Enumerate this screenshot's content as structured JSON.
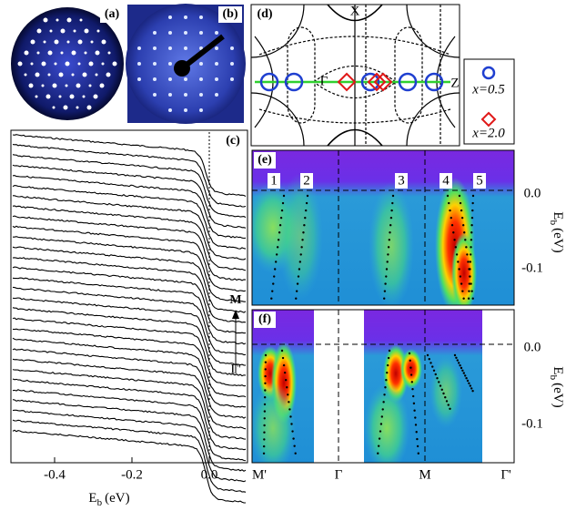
{
  "panels": {
    "a": {
      "label": "(a)"
    },
    "b": {
      "label": "(b)"
    },
    "c": {
      "label": "(c)",
      "xticks": [
        "-0.4",
        "-0.2",
        "0.0"
      ],
      "xlabel": {
        "main": "E",
        "sub": "b",
        "unit": "(eV)"
      },
      "arrow_top": "M",
      "arrow_bottom": "Γ'"
    },
    "d": {
      "label": "(d)",
      "points": [
        "X",
        "Γ",
        "Z"
      ],
      "legend": [
        "x=0.5",
        "x=2.0"
      ]
    },
    "e": {
      "label": "(e)",
      "bands": [
        "1",
        "2",
        "3",
        "4",
        "5"
      ],
      "yticks": [
        "0.0",
        "-0.1"
      ],
      "ylabel": {
        "main": "E",
        "sub": "b",
        "unit": "(eV)"
      }
    },
    "f": {
      "label": "(f)",
      "yticks": [
        "0.0",
        "-0.1"
      ],
      "ylabel": {
        "main": "E",
        "sub": "b",
        "unit": "(eV)"
      }
    },
    "bottom_axis": [
      "M'",
      "Γ",
      "M",
      "Γ'"
    ]
  }
}
